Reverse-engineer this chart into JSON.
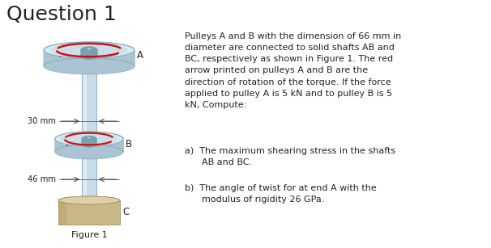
{
  "title": "Question 1",
  "title_fontsize": 18,
  "background_color": "#ffffff",
  "paragraph_text": "Pulleys A and B with the dimension of 66 mm in\ndiameter are connected to solid shafts AB and\nBC, respectively as shown in Figure 1. The red\narrow printed on pulleys A and B are the\ndirection of rotation of the torque. If the force\napplied to pulley A is 5 kN and to pulley B is 5\nkN, Compute:",
  "item_a": "a)  The maximum shearing stress in the shafts\n      AB and BC.",
  "item_b": "b)  The angle of twist for at end A with the\n      modulus of rigidity 26 GPa.",
  "figure_label": "Figure 1",
  "label_A": "A",
  "label_B": "B",
  "label_C": "C",
  "dim_30": "30 mm",
  "dim_46": "46 mm",
  "text_color": "#222222",
  "shaft_fill": "#c8dde8",
  "shaft_edge": "#8aafc0",
  "shaft_highlight": "#e8f2f8",
  "pulley_face_fill": "#ccdfe9",
  "pulley_face_edge": "#8aafc0",
  "pulley_side_fill": "#aac4d4",
  "pulley_rim_fill": "#d8eaf4",
  "hub_fill": "#7a9fb5",
  "hub_highlight": "#aaccdd",
  "base_top_fill": "#ddd0a8",
  "base_front_fill": "#c8b888",
  "base_edge": "#a89060",
  "arrow_color": "#cc1111",
  "dim_line_color": "#444444",
  "para_fontsize": 8.0,
  "item_fontsize": 8.0,
  "label_fontsize": 8.5
}
